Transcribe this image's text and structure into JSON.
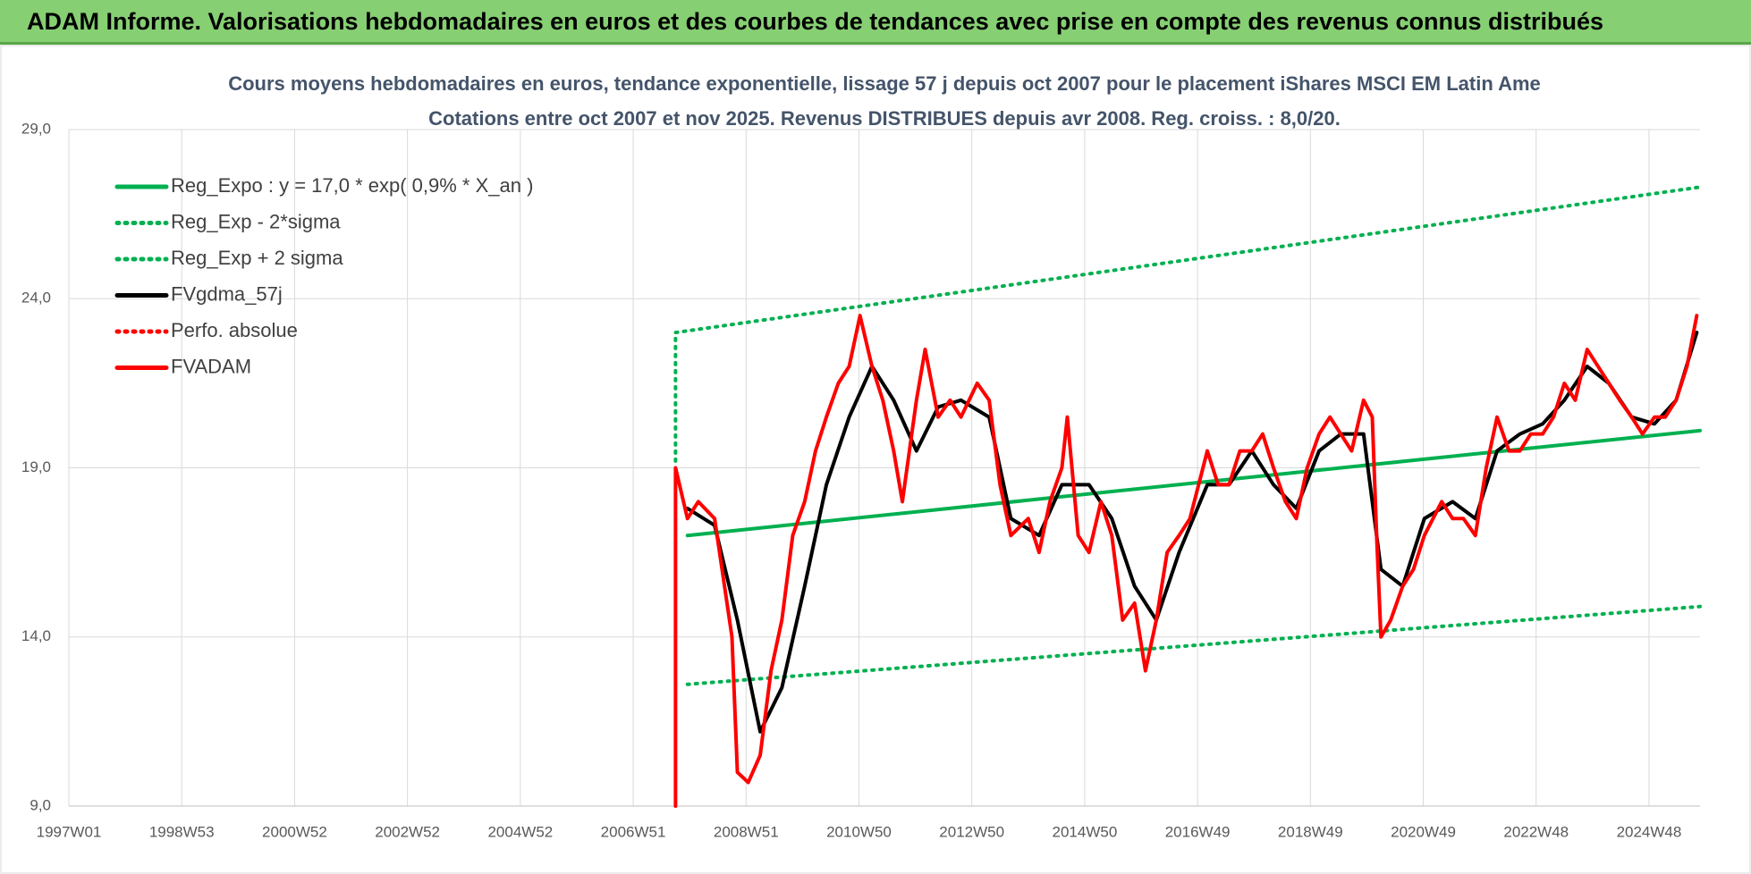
{
  "header": {
    "title": "ADAM Informe. Valorisations hebdomadaires en euros et des courbes de tendances avec prise en compte des revenus connus distribués"
  },
  "chart_data": {
    "type": "line",
    "title": "Cours moyens hebdomadaires en euros, tendance exponentielle, lissage 57 j depuis oct 2007 pour le placement iShares MSCI EM Latin Ame",
    "subtitle": "Cotations entre oct 2007 et nov 2025. Revenus DISTRIBUES depuis avr 2008. Reg. croiss. : 8,0/20.",
    "xlim": [
      0,
      1503
    ],
    "xticks": [
      {
        "value": 0,
        "label": "1997W01"
      },
      {
        "value": 104,
        "label": "1998W53"
      },
      {
        "value": 208,
        "label": "2000W52"
      },
      {
        "value": 312,
        "label": "2002W52"
      },
      {
        "value": 416,
        "label": "2004W52"
      },
      {
        "value": 520,
        "label": "2006W51"
      },
      {
        "value": 624,
        "label": "2008W51"
      },
      {
        "value": 728,
        "label": "2010W50"
      },
      {
        "value": 832,
        "label": "2012W50"
      },
      {
        "value": 936,
        "label": "2014W50"
      },
      {
        "value": 1040,
        "label": "2016W49"
      },
      {
        "value": 1144,
        "label": "2018W49"
      },
      {
        "value": 1248,
        "label": "2020W49"
      },
      {
        "value": 1352,
        "label": "2022W48"
      },
      {
        "value": 1456,
        "label": "2024W48"
      }
    ],
    "ylim": [
      9,
      29
    ],
    "yticks": [
      {
        "value": 9,
        "label": "9,0"
      },
      {
        "value": 14,
        "label": "14,0"
      },
      {
        "value": 19,
        "label": "19,0"
      },
      {
        "value": 24,
        "label": "24,0"
      },
      {
        "value": 29,
        "label": "29,0"
      }
    ],
    "grid": true,
    "legend": "top-left",
    "series": [
      {
        "name": "Reg_Expo : y = 17,0 * exp( 0,9% *  X_an )",
        "color": "#00b050",
        "dotted": false,
        "x": [
          570,
          1503
        ],
        "values": [
          17.0,
          20.1
        ]
      },
      {
        "name": "Reg_Exp - 2*sigma",
        "color": "#00b050",
        "dotted": true,
        "x": [
          570,
          1503
        ],
        "values": [
          12.6,
          14.9
        ]
      },
      {
        "name": "Reg_Exp + 2 sigma",
        "color": "#00b050",
        "dotted": true,
        "x": [
          559,
          559,
          1503
        ],
        "values": [
          19.2,
          23.0,
          27.3
        ]
      },
      {
        "name": "FVgdma_57j",
        "color": "#000000",
        "dotted": false,
        "x": [
          570,
          595,
          616,
          637,
          657,
          678,
          698,
          719,
          740,
          760,
          781,
          801,
          822,
          848,
          868,
          894,
          915,
          940,
          961,
          982,
          1002,
          1023,
          1049,
          1069,
          1090,
          1110,
          1131,
          1152,
          1172,
          1193,
          1209,
          1229,
          1249,
          1275,
          1296,
          1316,
          1337,
          1358,
          1378,
          1399,
          1419,
          1440,
          1461,
          1481,
          1500
        ],
        "values": [
          17.8,
          17.3,
          14.5,
          11.2,
          12.5,
          15.5,
          18.5,
          20.5,
          22,
          21,
          19.5,
          20.8,
          21,
          20.5,
          17.5,
          17,
          18.5,
          18.5,
          17.5,
          15.5,
          14.5,
          16.5,
          18.5,
          18.5,
          19.5,
          18.5,
          17.8,
          19.5,
          20,
          20,
          16,
          15.5,
          17.5,
          18,
          17.5,
          19.5,
          20,
          20.3,
          21,
          22,
          21.5,
          20.5,
          20.3,
          21,
          23
        ]
      },
      {
        "name": "Perfo. absolue",
        "color": "#ff0000",
        "dotted": true
      },
      {
        "name": "FVADAM",
        "color": "#ff0000",
        "dotted": false,
        "x": [
          559,
          559,
          570,
          580,
          595,
          611,
          616,
          626,
          637,
          647,
          657,
          667,
          678,
          688,
          698,
          709,
          719,
          729,
          740,
          750,
          760,
          768,
          781,
          789,
          801,
          812,
          822,
          837,
          848,
          858,
          868,
          884,
          894,
          904,
          915,
          920,
          930,
          940,
          951,
          961,
          971,
          982,
          992,
          1002,
          1012,
          1023,
          1033,
          1049,
          1059,
          1069,
          1079,
          1090,
          1100,
          1110,
          1121,
          1131,
          1141,
          1152,
          1162,
          1172,
          1182,
          1193,
          1201,
          1205,
          1209,
          1218,
          1229,
          1239,
          1249,
          1265,
          1275,
          1285,
          1296,
          1306,
          1316,
          1327,
          1337,
          1347,
          1358,
          1368,
          1378,
          1388,
          1399,
          1409,
          1419,
          1429,
          1440,
          1450,
          1461,
          1471,
          1481,
          1491,
          1500
        ],
        "values": [
          9,
          19,
          17.5,
          18,
          17.5,
          14,
          10,
          9.7,
          10.5,
          13,
          14.5,
          17,
          18,
          19.5,
          20.5,
          21.5,
          22,
          23.5,
          22,
          21,
          19.5,
          18,
          21,
          22.5,
          20.5,
          21,
          20.5,
          21.5,
          21,
          18.5,
          17,
          17.5,
          16.5,
          18,
          19,
          20.5,
          17,
          16.5,
          18,
          17,
          14.5,
          15,
          13,
          14.5,
          16.5,
          17,
          17.5,
          19.5,
          18.5,
          18.5,
          19.5,
          19.5,
          20,
          19,
          18,
          17.5,
          19,
          20,
          20.5,
          20,
          19.5,
          21,
          20.5,
          17,
          14,
          14.5,
          15.5,
          16,
          17,
          18,
          17.5,
          17.5,
          17,
          19,
          20.5,
          19.5,
          19.5,
          20,
          20,
          20.5,
          21.5,
          21,
          22.5,
          22,
          21.5,
          21,
          20.5,
          20,
          20.5,
          20.5,
          21,
          22,
          23.5
        ]
      }
    ]
  }
}
